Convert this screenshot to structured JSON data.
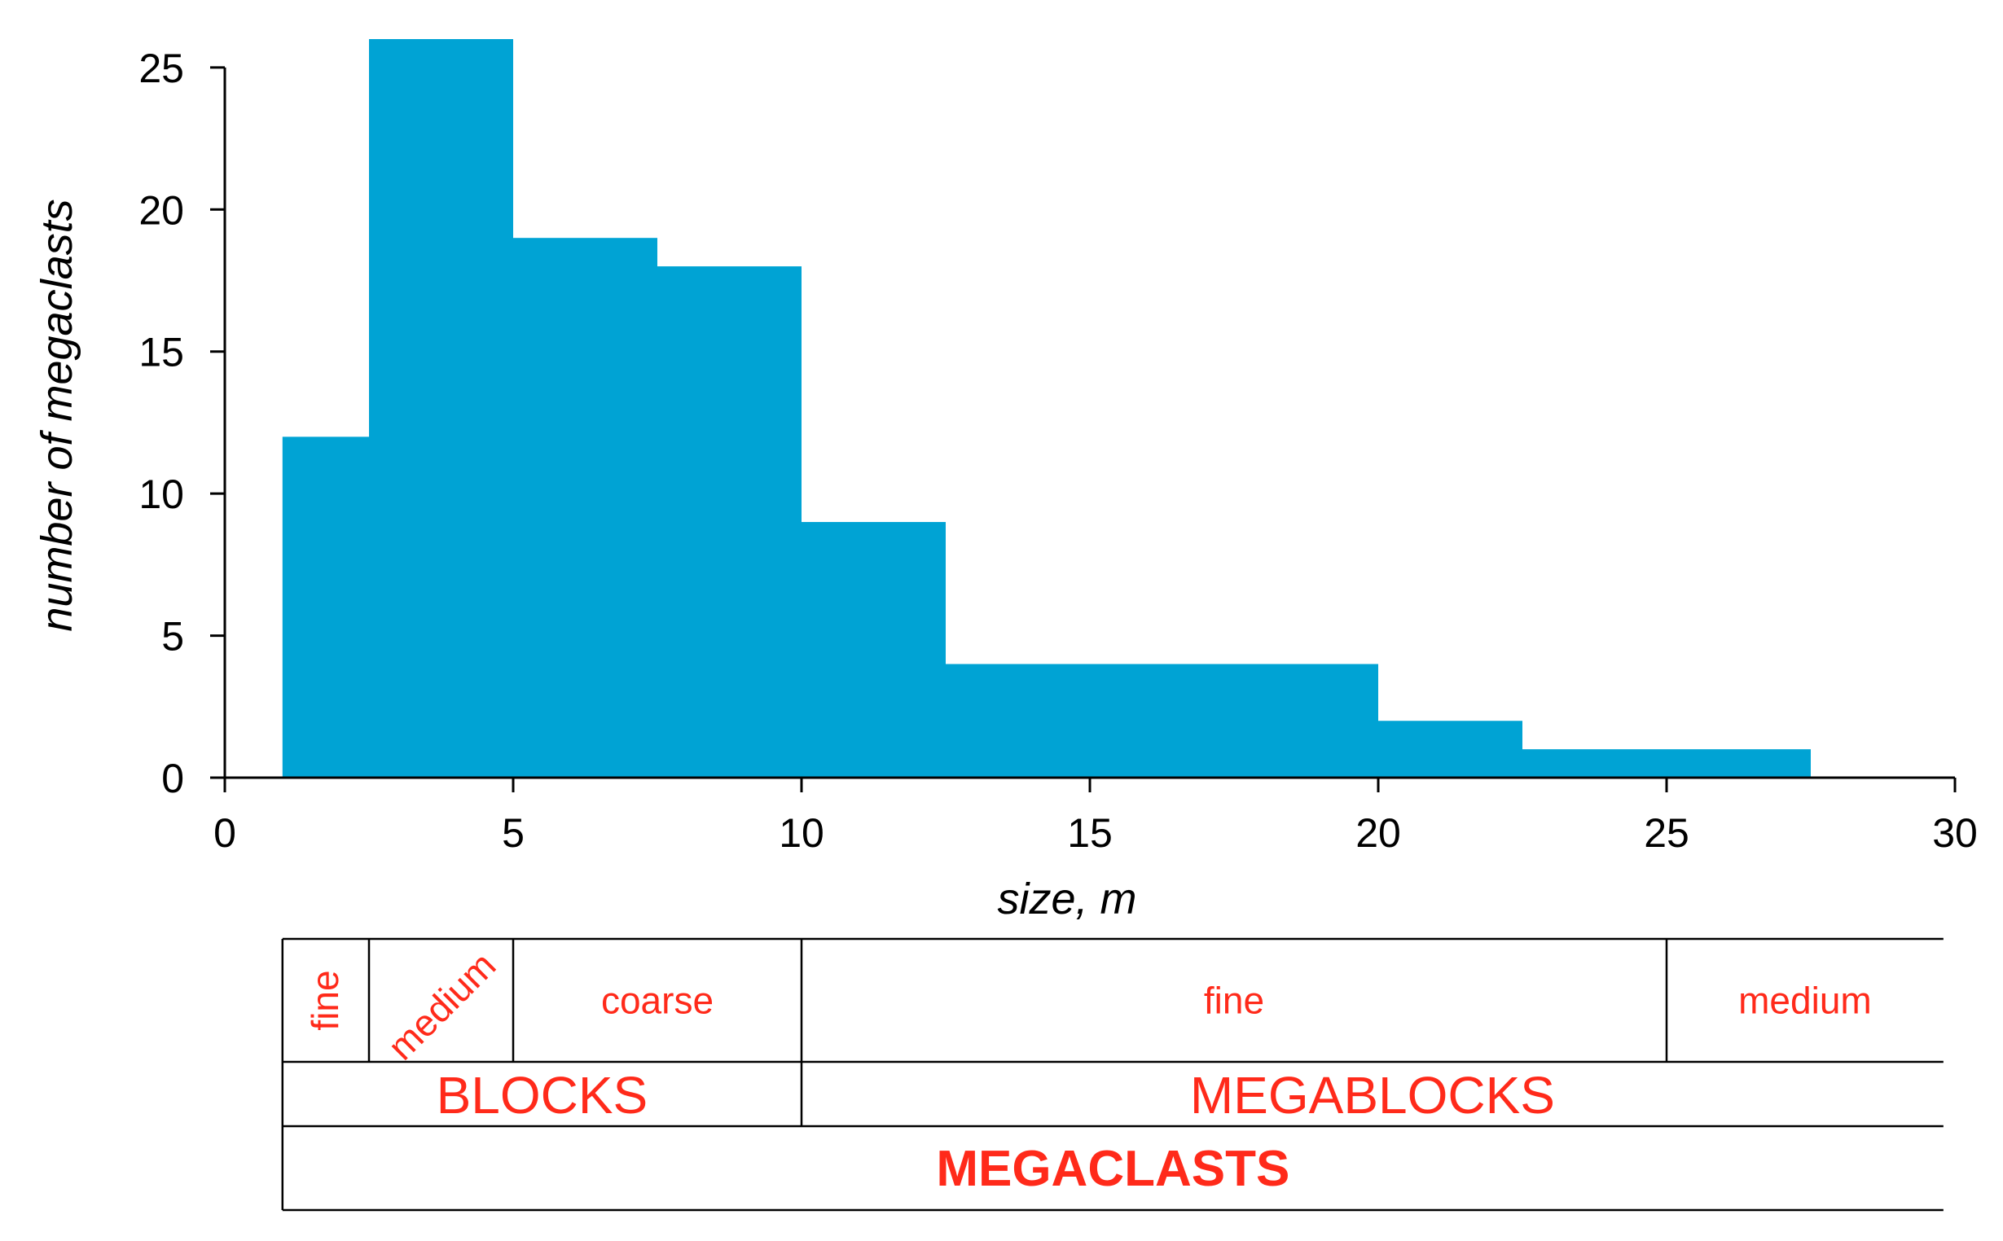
{
  "chart_data": {
    "type": "bar",
    "bar_color": "#00a3d4",
    "bins": [
      {
        "x0": 1,
        "x1": 2.5,
        "count": 12
      },
      {
        "x0": 2.5,
        "x1": 5,
        "count": 26
      },
      {
        "x0": 5,
        "x1": 7.5,
        "count": 19
      },
      {
        "x0": 7.5,
        "x1": 10,
        "count": 18
      },
      {
        "x0": 10,
        "x1": 12.5,
        "count": 9
      },
      {
        "x0": 12.5,
        "x1": 20,
        "count": 4
      },
      {
        "x0": 20,
        "x1": 22.5,
        "count": 2
      },
      {
        "x0": 22.5,
        "x1": 27.5,
        "count": 1
      }
    ],
    "xlabel": "size, m",
    "ylabel": "number of megaclasts",
    "xlim": [
      0,
      30
    ],
    "ylim": [
      0,
      26
    ],
    "xticks": [
      "0",
      "5",
      "10",
      "15",
      "20",
      "25",
      "30"
    ],
    "yticks": [
      "0",
      "5",
      "10",
      "15",
      "20",
      "25"
    ],
    "grid": false
  },
  "classification": {
    "color": "#ff2a1a",
    "subclasses": [
      {
        "label": "fine",
        "from": 1,
        "to": 2.5
      },
      {
        "label": "medium",
        "from": 2.5,
        "to": 5
      },
      {
        "label": "coarse",
        "from": 5,
        "to": 10
      },
      {
        "label": "fine",
        "from": 10,
        "to": 25
      },
      {
        "label": "medium",
        "from": 25,
        "to": 29.8
      }
    ],
    "classes": [
      {
        "label": "BLOCKS",
        "from": 1,
        "to": 10
      },
      {
        "label": "MEGABLOCKS",
        "from": 10,
        "to": 29.8
      }
    ],
    "group": {
      "label": "MEGACLASTS",
      "from": 1,
      "to": 29.8
    }
  }
}
